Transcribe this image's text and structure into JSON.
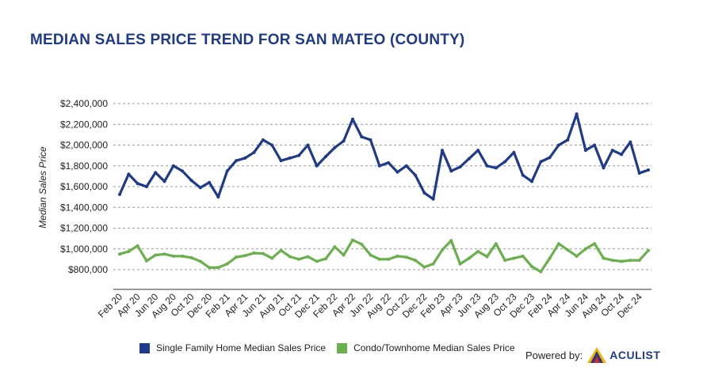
{
  "title": "MEDIAN SALES PRICE TREND FOR SAN MATEO (COUNTY)",
  "chart_data": {
    "type": "line",
    "title": "MEDIAN SALES PRICE TREND FOR SAN MATEO (COUNTY)",
    "xlabel": "",
    "ylabel": "Median Sales Price",
    "ylim": [
      800000,
      2400000
    ],
    "yticks": [
      2400000,
      2200000,
      2000000,
      1800000,
      1600000,
      1400000,
      1200000,
      1000000,
      800000
    ],
    "ytick_labels": [
      "$2,400,000",
      "$2,200,000",
      "$2,000,000",
      "$1,800,000",
      "$1,600,000",
      "$1,400,000",
      "$1,200,000",
      "$1,000,000",
      "$800,000"
    ],
    "x": [
      "Feb 20",
      "Mar 20",
      "Apr 20",
      "May 20",
      "Jun 20",
      "Jul 20",
      "Aug 20",
      "Sep 20",
      "Oct 20",
      "Nov 20",
      "Dec 20",
      "Jan 21",
      "Feb 21",
      "Mar 21",
      "Apr 21",
      "May 21",
      "Jun 21",
      "Jul 21",
      "Aug 21",
      "Sep 21",
      "Oct 21",
      "Nov 21",
      "Dec 21",
      "Jan 22",
      "Feb 22",
      "Mar 22",
      "Apr 22",
      "May 22",
      "Jun 22",
      "Jul 22",
      "Aug 22",
      "Sep 22",
      "Oct 22",
      "Nov 22",
      "Dec 22",
      "Jan 23",
      "Feb 23",
      "Mar 23",
      "Apr 23",
      "May 23",
      "Jun 23",
      "Jul 23",
      "Aug 23",
      "Sep 23",
      "Oct 23",
      "Nov 23",
      "Dec 23",
      "Jan 24",
      "Feb 24",
      "Mar 24",
      "Apr 24",
      "May 24",
      "Jun 24",
      "Jul 24",
      "Aug 24",
      "Sep 24",
      "Oct 24",
      "Nov 24",
      "Dec 24",
      "Jan 25"
    ],
    "xtick_labels": [
      "Feb 20",
      "",
      "Apr 20",
      "",
      "Jun 20",
      "",
      "Aug 20",
      "",
      "Oct 20",
      "",
      "Dec 20",
      "",
      "Feb 21",
      "",
      "Apr 21",
      "",
      "Jun 21",
      "",
      "Aug 21",
      "",
      "Oct 21",
      "",
      "Dec 21",
      "",
      "Feb 22",
      "",
      "Apr 22",
      "",
      "Jun 22",
      "",
      "Aug 22",
      "",
      "Oct 22",
      "",
      "Dec 22",
      "",
      "Feb 23",
      "",
      "Apr 23",
      "",
      "Jun 23",
      "",
      "Aug 23",
      "",
      "Oct 23",
      "",
      "Dec 23",
      "",
      "Feb 24",
      "",
      "Apr 24",
      "",
      "Jun 24",
      "",
      "Aug 24",
      "",
      "Oct 24",
      "",
      "Dec 24",
      ""
    ],
    "series": [
      {
        "name": "Single Family Home Median Sales Price",
        "color": "#1f3a8a",
        "values": [
          1525000,
          1720000,
          1630000,
          1600000,
          1735000,
          1650000,
          1800000,
          1750000,
          1660000,
          1590000,
          1640000,
          1500000,
          1750000,
          1850000,
          1875000,
          1930000,
          2050000,
          2000000,
          1850000,
          1875000,
          1900000,
          2000000,
          1800000,
          1890000,
          1975000,
          2040000,
          2250000,
          2080000,
          2050000,
          1800000,
          1830000,
          1740000,
          1800000,
          1710000,
          1540000,
          1480000,
          1950000,
          1750000,
          1790000,
          1870000,
          1950000,
          1800000,
          1780000,
          1840000,
          1930000,
          1710000,
          1650000,
          1840000,
          1880000,
          2000000,
          2050000,
          2300000,
          1950000,
          2000000,
          1780000,
          1950000,
          1910000,
          2030000,
          1730000,
          1760000
        ]
      },
      {
        "name": "Condo/Townhome Median Sales Price",
        "color": "#6ab04c",
        "values": [
          950000,
          975000,
          1030000,
          885000,
          940000,
          950000,
          930000,
          930000,
          915000,
          880000,
          820000,
          820000,
          855000,
          920000,
          935000,
          960000,
          955000,
          910000,
          985000,
          925000,
          900000,
          925000,
          880000,
          905000,
          1020000,
          940000,
          1085000,
          1045000,
          940000,
          900000,
          900000,
          930000,
          920000,
          890000,
          825000,
          855000,
          990000,
          1080000,
          855000,
          910000,
          975000,
          925000,
          1050000,
          890000,
          910000,
          930000,
          830000,
          780000,
          910000,
          1050000,
          990000,
          930000,
          1000000,
          1050000,
          910000,
          890000,
          880000,
          890000,
          890000,
          985000
        ]
      }
    ],
    "grid": true,
    "legend": "bottom"
  },
  "footer": {
    "powered_by": "Powered by:",
    "logo_text": "ACULIST"
  }
}
